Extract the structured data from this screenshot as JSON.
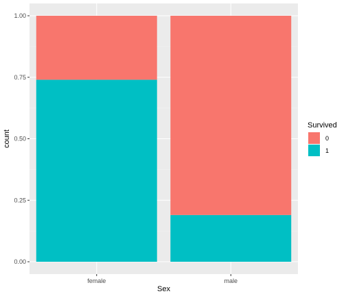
{
  "chart_data": {
    "type": "bar",
    "stacked": true,
    "position": "fill",
    "xlabel": "Sex",
    "ylabel": "count",
    "categories": [
      "female",
      "male"
    ],
    "ylim": [
      0,
      1
    ],
    "yticks": [
      0.0,
      0.25,
      0.5,
      0.75,
      1.0
    ],
    "ytick_labels": [
      "0.00",
      "0.25",
      "0.50",
      "0.75",
      "1.00"
    ],
    "series": [
      {
        "name": "0",
        "color": "#F8766D",
        "values": [
          0.26,
          0.81
        ]
      },
      {
        "name": "1",
        "color": "#00BFC4",
        "values": [
          0.74,
          0.19
        ]
      }
    ],
    "legend": {
      "title": "Survived",
      "position": "right"
    },
    "grid": true,
    "panel_background": "#EBEBEB"
  }
}
